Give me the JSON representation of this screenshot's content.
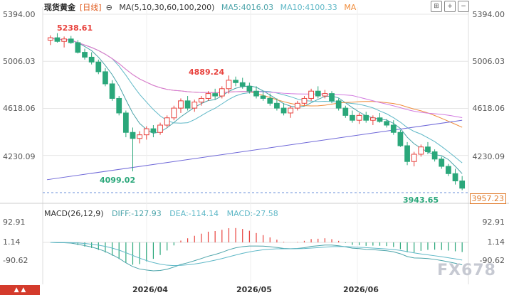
{
  "header": {
    "title": "现货黄金",
    "period": "[日线]",
    "indicator": "MA(5,10,30,60,100,200)",
    "ma5": "MA5:4016.03",
    "ma10": "MA10:4100.33",
    "ma_extra": "MA"
  },
  "price_axis": {
    "labels": [
      "5394.00",
      "5006.03",
      "4618.06",
      "4230.09"
    ],
    "last_price": "3957.23"
  },
  "annotations": {
    "high1": "5238.61",
    "high2": "4889.24",
    "low1": "4099.02",
    "low2": "3943.65"
  },
  "macd": {
    "label": "MACD(26,12,9)",
    "diff": "DIFF:-127.93",
    "dea": "DEA:-114.14",
    "macd": "MACD:-27.58",
    "axis_labels": [
      "92.91",
      "1.14",
      "-90.62"
    ]
  },
  "dates": [
    "2026/04",
    "2026/05",
    "2026/06"
  ],
  "watermark": "FX678",
  "colors": {
    "up": "#e8413c",
    "down": "#2aa77a",
    "ma5": "#4aa3a9",
    "ma10": "#5fb8c7",
    "ma30": "#f08c3a",
    "ma60": "#d27be0",
    "ma100": "#6f68d8",
    "grid": "#e6e6e6"
  },
  "chart_data": {
    "type": "candlestick",
    "price_range": [
      3900,
      5394
    ],
    "candles": [
      [
        5180,
        5220,
        5140,
        5200
      ],
      [
        5200,
        5238,
        5160,
        5170
      ],
      [
        5170,
        5210,
        5120,
        5190
      ],
      [
        5190,
        5215,
        5150,
        5160
      ],
      [
        5160,
        5180,
        5070,
        5080
      ],
      [
        5080,
        5110,
        5020,
        5040
      ],
      [
        5040,
        5080,
        4980,
        5000
      ],
      [
        5000,
        5020,
        4900,
        4920
      ],
      [
        4920,
        4950,
        4800,
        4820
      ],
      [
        4820,
        4850,
        4680,
        4700
      ],
      [
        4700,
        4720,
        4560,
        4580
      ],
      [
        4580,
        4600,
        4380,
        4420
      ],
      [
        4420,
        4460,
        4099,
        4370
      ],
      [
        4370,
        4430,
        4330,
        4400
      ],
      [
        4400,
        4470,
        4360,
        4450
      ],
      [
        4450,
        4480,
        4380,
        4420
      ],
      [
        4420,
        4500,
        4400,
        4480
      ],
      [
        4480,
        4560,
        4460,
        4540
      ],
      [
        4540,
        4640,
        4520,
        4620
      ],
      [
        4620,
        4700,
        4580,
        4680
      ],
      [
        4680,
        4720,
        4600,
        4620
      ],
      [
        4620,
        4690,
        4590,
        4670
      ],
      [
        4670,
        4720,
        4640,
        4700
      ],
      [
        4700,
        4760,
        4680,
        4740
      ],
      [
        4740,
        4780,
        4690,
        4720
      ],
      [
        4720,
        4800,
        4700,
        4780
      ],
      [
        4780,
        4889,
        4740,
        4850
      ],
      [
        4850,
        4880,
        4800,
        4830
      ],
      [
        4830,
        4870,
        4780,
        4800
      ],
      [
        4800,
        4830,
        4740,
        4760
      ],
      [
        4760,
        4800,
        4700,
        4720
      ],
      [
        4720,
        4760,
        4680,
        4700
      ],
      [
        4700,
        4740,
        4640,
        4660
      ],
      [
        4660,
        4700,
        4600,
        4620
      ],
      [
        4620,
        4660,
        4560,
        4580
      ],
      [
        4580,
        4640,
        4540,
        4620
      ],
      [
        4620,
        4680,
        4600,
        4660
      ],
      [
        4660,
        4720,
        4640,
        4700
      ],
      [
        4700,
        4780,
        4680,
        4760
      ],
      [
        4760,
        4800,
        4700,
        4720
      ],
      [
        4720,
        4770,
        4700,
        4740
      ],
      [
        4740,
        4760,
        4660,
        4680
      ],
      [
        4680,
        4700,
        4600,
        4620
      ],
      [
        4620,
        4640,
        4540,
        4560
      ],
      [
        4560,
        4600,
        4500,
        4520
      ],
      [
        4520,
        4580,
        4490,
        4560
      ],
      [
        4560,
        4590,
        4500,
        4520
      ],
      [
        4520,
        4560,
        4480,
        4540
      ],
      [
        4540,
        4580,
        4500,
        4510
      ],
      [
        4510,
        4530,
        4460,
        4480
      ],
      [
        4480,
        4520,
        4400,
        4420
      ],
      [
        4420,
        4440,
        4300,
        4310
      ],
      [
        4310,
        4340,
        4150,
        4180
      ],
      [
        4180,
        4260,
        4140,
        4240
      ],
      [
        4240,
        4320,
        4220,
        4300
      ],
      [
        4300,
        4340,
        4240,
        4260
      ],
      [
        4260,
        4280,
        4180,
        4200
      ],
      [
        4200,
        4220,
        4120,
        4140
      ],
      [
        4140,
        4160,
        4060,
        4080
      ],
      [
        4080,
        4120,
        3990,
        4020
      ],
      [
        4020,
        4060,
        3943,
        3960
      ]
    ]
  }
}
